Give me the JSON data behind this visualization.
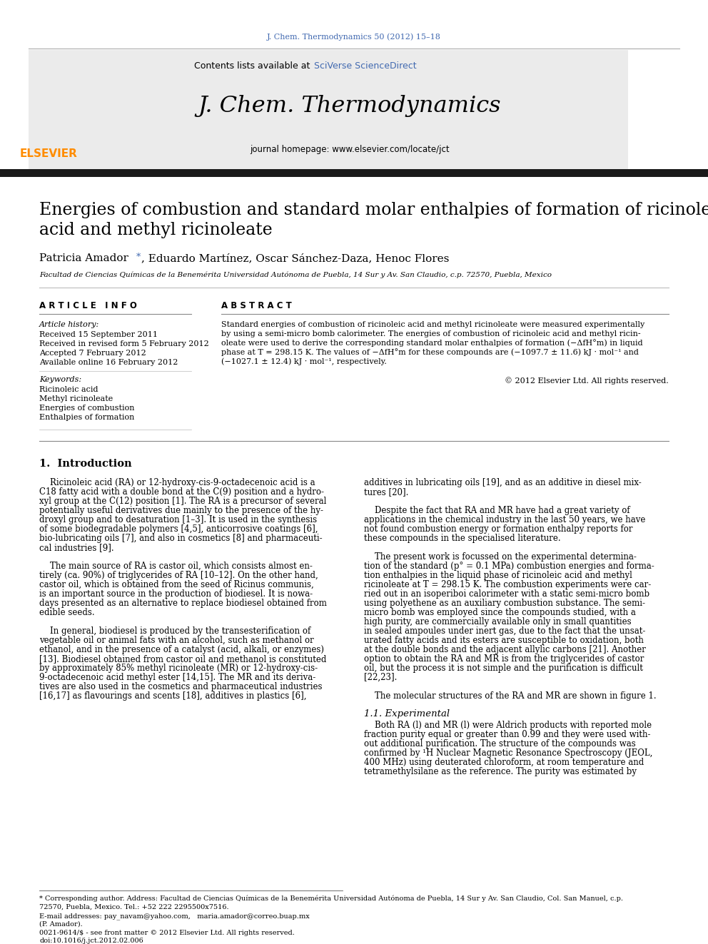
{
  "journal_ref": "J. Chem. Thermodynamics 50 (2012) 15–18",
  "journal_ref_color": "#4169B0",
  "contents_line": "Contents lists available at ",
  "sciverse_text": "SciVerse ScienceDirect",
  "sciverse_color": "#4169B0",
  "journal_title": "J. Chem. Thermodynamics",
  "homepage_line": "journal homepage: www.elsevier.com/locate/jct",
  "paper_title_line1": "Energies of combustion and standard molar enthalpies of formation of ricinoleic",
  "paper_title_line2": "acid and methyl ricinoleate",
  "author_main": "Patricia Amador",
  "author_star": "*",
  "author_rest": ", Eduardo Martínez, Oscar Sánchez-Daza, Henoc Flores",
  "affiliation": "Facultad de Ciencias Químicas de la Benemérita Universidad Autónoma de Puebla, 14 Sur y Av. San Claudio, c.p. 72570, Puebla, Mexico",
  "article_info_header": "A R T I C L E   I N F O",
  "abstract_header": "A B S T R A C T",
  "article_history_label": "Article history:",
  "received1": "Received 15 September 2011",
  "received2": "Received in revised form 5 February 2012",
  "accepted": "Accepted 7 February 2012",
  "available": "Available online 16 February 2012",
  "keywords_label": "Keywords:",
  "keywords": [
    "Ricinoleic acid",
    "Methyl ricinoleate",
    "Energies of combustion",
    "Enthalpies of formation"
  ],
  "abstract_lines": [
    "Standard energies of combustion of ricinoleic acid and methyl ricinoleate were measured experimentally",
    "by using a semi-micro bomb calorimeter. The energies of combustion of ricinoleic acid and methyl ricin-",
    "oleate were used to derive the corresponding standard molar enthalpies of formation (−ΔfH°m) in liquid",
    "phase at T = 298.15 K. The values of −ΔfH°m for these compounds are (−1097.7 ± 11.6) kJ · mol⁻¹ and",
    "(−1027.1 ± 12.4) kJ · mol⁻¹, respectively."
  ],
  "copyright": "© 2012 Elsevier Ltd. All rights reserved.",
  "intro_header": "1.  Introduction",
  "col1_lines": [
    "    Ricinoleic acid (RA) or 12-hydroxy-cis-9-octadecenoic acid is a",
    "C18 fatty acid with a double bond at the C(9) position and a hydro-",
    "xyl group at the C(12) position [1]. The RA is a precursor of several",
    "potentially useful derivatives due mainly to the presence of the hy-",
    "droxyl group and to desaturation [1–3]. It is used in the synthesis",
    "of some biodegradable polymers [4,5], anticorrosive coatings [6],",
    "bio-lubricating oils [7], and also in cosmetics [8] and pharmaceuti-",
    "cal industries [9].",
    "",
    "    The main source of RA is castor oil, which consists almost en-",
    "tirely (ca. 90%) of triglycerides of RA [10–12]. On the other hand,",
    "castor oil, which is obtained from the seed of Ricinus communis,",
    "is an important source in the production of biodiesel. It is nowa-",
    "days presented as an alternative to replace biodiesel obtained from",
    "edible seeds.",
    "",
    "    In general, biodiesel is produced by the transesterification of",
    "vegetable oil or animal fats with an alcohol, such as methanol or",
    "ethanol, and in the presence of a catalyst (acid, alkali, or enzymes)",
    "[13]. Biodiesel obtained from castor oil and methanol is constituted",
    "by approximately 85% methyl ricinoleate (MR) or 12-hydroxy-cis-",
    "9-octadecenoic acid methyl ester [14,15]. The MR and its deriva-",
    "tives are also used in the cosmetics and pharmaceutical industries",
    "[16,17] as flavourings and scents [18], additives in plastics [6],"
  ],
  "col2_lines": [
    "additives in lubricating oils [19], and as an additive in diesel mix-",
    "tures [20].",
    "",
    "    Despite the fact that RA and MR have had a great variety of",
    "applications in the chemical industry in the last 50 years, we have",
    "not found combustion energy or formation enthalpy reports for",
    "these compounds in the specialised literature.",
    "",
    "    The present work is focussed on the experimental determina-",
    "tion of the standard (p° = 0.1 MPa) combustion energies and forma-",
    "tion enthalpies in the liquid phase of ricinoleic acid and methyl",
    "ricinoleate at T = 298.15 K. The combustion experiments were car-",
    "ried out in an isoperiboi calorimeter with a static semi-micro bomb",
    "using polyethene as an auxiliary combustion substance. The semi-",
    "micro bomb was employed since the compounds studied, with a",
    "high purity, are commercially available only in small quantities",
    "in sealed ampoules under inert gas, due to the fact that the unsat-",
    "urated fatty acids and its esters are susceptible to oxidation, both",
    "at the double bonds and the adjacent allylic carbons [21]. Another",
    "option to obtain the RA and MR is from the triglycerides of castor",
    "oil, but the process it is not simple and the purification is difficult",
    "[22,23].",
    "",
    "    The molecular structures of the RA and MR are shown in figure 1."
  ],
  "section_11": "1.1. Experimental",
  "section_11_lines": [
    "    Both RA (l) and MR (l) were Aldrich products with reported mole",
    "fraction purity equal or greater than 0.99 and they were used with-",
    "out additional purification. The structure of the compounds was",
    "confirmed by ¹H Nuclear Magnetic Resonance Spectroscopy (JEOL,",
    "400 MHz) using deuterated chloroform, at room temperature and",
    "tetramethylsilane as the reference. The purity was estimated by"
  ],
  "footer_lines": [
    "* Corresponding author. Address: Facultad de Ciencias Químicas de la Benemérita Universidad Autónoma de Puebla, 14 Sur y Av. San Claudio, Col. San Manuel, c.p.",
    "72570, Puebla, Mexico. Tel.: +52 222 2295500x7516.",
    "E-mail addresses: pay_navam@yahoo.com,   maria.amador@correo.buap.mx",
    "(P. Amador)."
  ],
  "footer_issn": "0021-9614/$ - see front matter © 2012 Elsevier Ltd. All rights reserved.",
  "footer_doi": "doi:10.1016/j.jct.2012.02.006",
  "bg_color": "#FFFFFF",
  "header_bg": "#EBEBEB",
  "text_color": "#000000",
  "link_color": "#4169B0",
  "thick_bar_color": "#1A1A1A"
}
